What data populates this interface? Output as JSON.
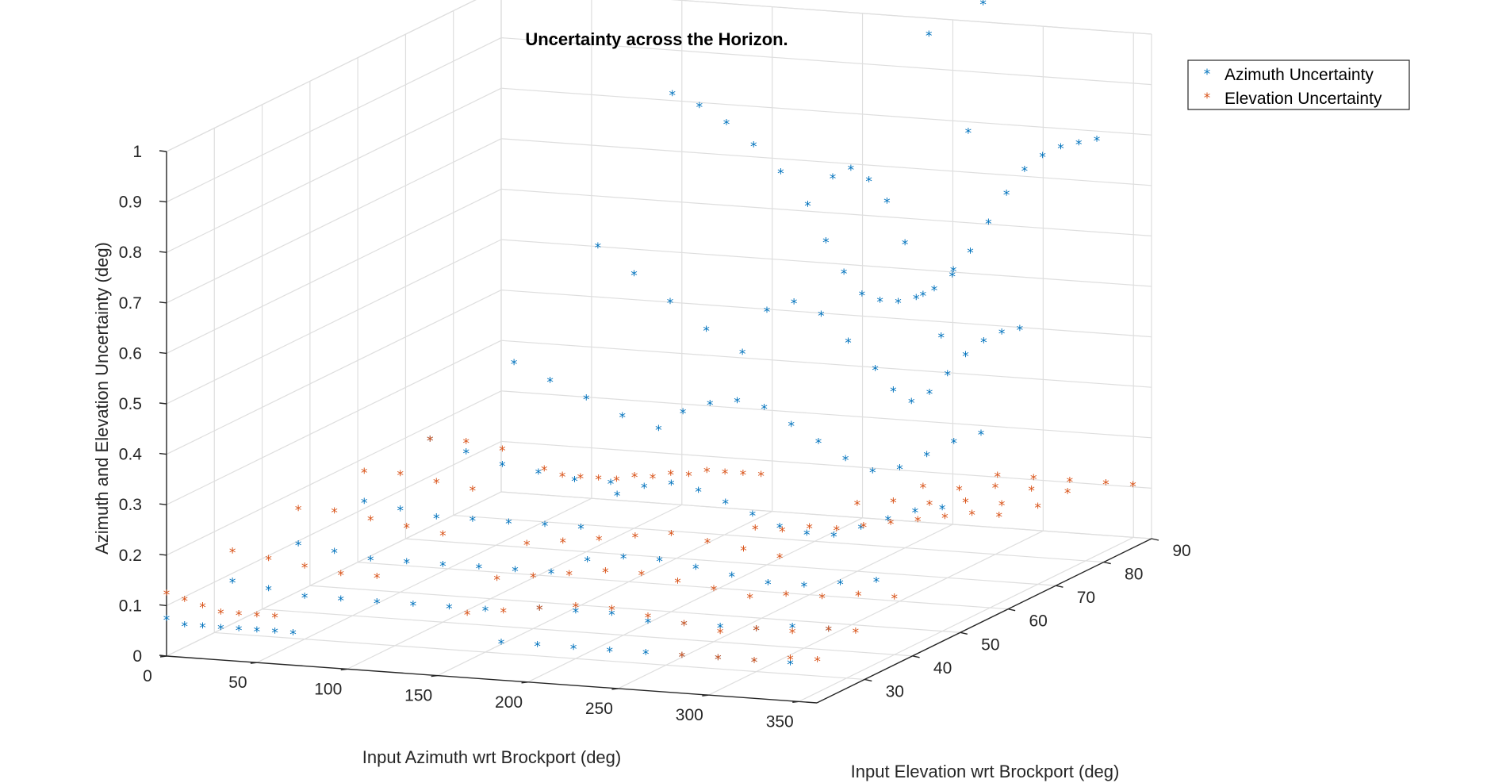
{
  "chart_data": {
    "type": "scatter3d",
    "title": "Uncertainty across the Horizon.",
    "xlabel": "Input Azimuth wrt Brockport (deg)",
    "ylabel": "Input Elevation wrt Brockport (deg)",
    "zlabel": "Azimuth and Elevation Uncertainty (deg)",
    "xlim": [
      0,
      360
    ],
    "ylim": [
      20,
      90
    ],
    "zlim": [
      0,
      1
    ],
    "xticks": [
      "0",
      "50",
      "100",
      "150",
      "200",
      "250",
      "300",
      "350"
    ],
    "yticks": [
      "30",
      "40",
      "50",
      "60",
      "70",
      "80",
      "90"
    ],
    "zticks": [
      "0",
      "0.1",
      "0.2",
      "0.3",
      "0.4",
      "0.5",
      "0.6",
      "0.7",
      "0.8",
      "0.9",
      "1"
    ],
    "grid": true,
    "legend_position": "top-right",
    "marker": "*",
    "series": [
      {
        "name": "Azimuth Uncertainty",
        "color": "#0072BD",
        "points": [
          [
            0,
            20,
            0.07
          ],
          [
            10,
            20,
            0.06
          ],
          [
            20,
            20,
            0.06
          ],
          [
            30,
            20,
            0.06
          ],
          [
            40,
            20,
            0.06
          ],
          [
            50,
            20,
            0.06
          ],
          [
            60,
            20,
            0.06
          ],
          [
            70,
            20,
            0.06
          ],
          [
            10,
            30,
            0.1
          ],
          [
            30,
            30,
            0.09
          ],
          [
            50,
            30,
            0.08
          ],
          [
            70,
            30,
            0.08
          ],
          [
            90,
            30,
            0.08
          ],
          [
            110,
            30,
            0.08
          ],
          [
            130,
            30,
            0.08
          ],
          [
            150,
            30,
            0.08
          ],
          [
            20,
            40,
            0.13
          ],
          [
            40,
            40,
            0.12
          ],
          [
            60,
            40,
            0.11
          ],
          [
            80,
            40,
            0.11
          ],
          [
            100,
            40,
            0.11
          ],
          [
            120,
            40,
            0.11
          ],
          [
            140,
            40,
            0.11
          ],
          [
            160,
            40,
            0.11
          ],
          [
            30,
            50,
            0.17
          ],
          [
            50,
            50,
            0.16
          ],
          [
            70,
            50,
            0.15
          ],
          [
            90,
            50,
            0.15
          ],
          [
            110,
            50,
            0.15
          ],
          [
            130,
            50,
            0.15
          ],
          [
            150,
            50,
            0.15
          ],
          [
            40,
            60,
            0.25
          ],
          [
            60,
            60,
            0.23
          ],
          [
            80,
            60,
            0.21
          ],
          [
            100,
            60,
            0.2
          ],
          [
            120,
            60,
            0.19
          ],
          [
            140,
            60,
            0.19
          ],
          [
            60,
            70,
            0.36
          ],
          [
            80,
            70,
            0.33
          ],
          [
            100,
            70,
            0.3
          ],
          [
            120,
            70,
            0.27
          ],
          [
            140,
            70,
            0.25
          ],
          [
            80,
            80,
            0.55
          ],
          [
            100,
            80,
            0.5
          ],
          [
            120,
            80,
            0.45
          ],
          [
            140,
            80,
            0.4
          ],
          [
            160,
            80,
            0.36
          ],
          [
            100,
            88,
            0.82
          ],
          [
            115,
            88,
            0.8
          ],
          [
            130,
            88,
            0.77
          ],
          [
            145,
            88,
            0.73
          ],
          [
            160,
            88,
            0.68
          ],
          [
            175,
            88,
            0.62
          ],
          [
            185,
            88,
            0.55
          ],
          [
            195,
            88,
            0.49
          ],
          [
            205,
            88,
            0.45
          ],
          [
            215,
            88,
            0.44
          ],
          [
            225,
            88,
            0.44
          ],
          [
            235,
            88,
            0.45
          ],
          [
            245,
            88,
            0.47
          ],
          [
            255,
            88,
            0.5
          ],
          [
            265,
            88,
            0.55
          ],
          [
            275,
            88,
            0.61
          ],
          [
            285,
            88,
            0.67
          ],
          [
            295,
            88,
            0.72
          ],
          [
            305,
            88,
            0.75
          ],
          [
            315,
            88,
            0.77
          ],
          [
            325,
            88,
            0.78
          ],
          [
            335,
            88,
            0.79
          ],
          [
            210,
            80,
            0.72
          ],
          [
            220,
            80,
            0.74
          ],
          [
            230,
            80,
            0.72
          ],
          [
            240,
            80,
            0.68
          ],
          [
            250,
            80,
            0.6
          ],
          [
            260,
            80,
            0.5
          ],
          [
            270,
            80,
            0.42
          ],
          [
            250,
            85,
            0.99
          ],
          [
            280,
            85,
            1.06
          ],
          [
            285,
            80,
            0.83
          ],
          [
            290,
            75,
            0.58
          ],
          [
            200,
            70,
            0.5
          ],
          [
            215,
            70,
            0.52
          ],
          [
            230,
            70,
            0.5
          ],
          [
            245,
            70,
            0.45
          ],
          [
            260,
            70,
            0.4
          ],
          [
            270,
            70,
            0.36
          ],
          [
            280,
            70,
            0.34
          ],
          [
            290,
            70,
            0.36
          ],
          [
            300,
            70,
            0.4
          ],
          [
            310,
            70,
            0.44
          ],
          [
            320,
            70,
            0.47
          ],
          [
            330,
            70,
            0.49
          ],
          [
            340,
            70,
            0.5
          ],
          [
            180,
            60,
            0.34
          ],
          [
            195,
            60,
            0.36
          ],
          [
            210,
            60,
            0.37
          ],
          [
            225,
            60,
            0.36
          ],
          [
            240,
            60,
            0.33
          ],
          [
            255,
            60,
            0.3
          ],
          [
            270,
            60,
            0.27
          ],
          [
            285,
            60,
            0.25
          ],
          [
            300,
            60,
            0.26
          ],
          [
            315,
            60,
            0.29
          ],
          [
            330,
            60,
            0.32
          ],
          [
            345,
            60,
            0.34
          ],
          [
            170,
            50,
            0.22
          ],
          [
            185,
            50,
            0.24
          ],
          [
            200,
            50,
            0.25
          ],
          [
            215,
            50,
            0.24
          ],
          [
            230,
            50,
            0.22
          ],
          [
            245,
            50,
            0.2
          ],
          [
            260,
            50,
            0.18
          ],
          [
            275,
            50,
            0.17
          ],
          [
            290,
            50,
            0.17
          ],
          [
            305,
            50,
            0.19
          ],
          [
            320,
            50,
            0.21
          ],
          [
            335,
            50,
            0.23
          ],
          [
            350,
            50,
            0.24
          ],
          [
            180,
            40,
            0.14
          ],
          [
            200,
            40,
            0.15
          ],
          [
            220,
            40,
            0.15
          ],
          [
            240,
            40,
            0.14
          ],
          [
            260,
            40,
            0.13
          ],
          [
            280,
            40,
            0.12
          ],
          [
            300,
            40,
            0.12
          ],
          [
            320,
            40,
            0.13
          ],
          [
            340,
            40,
            0.14
          ],
          [
            180,
            30,
            0.09
          ],
          [
            200,
            30,
            0.09
          ],
          [
            220,
            30,
            0.09
          ],
          [
            240,
            30,
            0.08
          ],
          [
            260,
            30,
            0.08
          ],
          [
            280,
            30,
            0.08
          ],
          [
            300,
            30,
            0.08
          ],
          [
            320,
            30,
            0.09
          ],
          [
            340,
            30,
            0.09
          ],
          [
            180,
            22,
            0.06
          ],
          [
            200,
            22,
            0.06
          ],
          [
            220,
            22,
            0.06
          ],
          [
            240,
            22,
            0.06
          ],
          [
            260,
            22,
            0.06
          ],
          [
            280,
            22,
            0.06
          ],
          [
            300,
            22,
            0.06
          ],
          [
            320,
            22,
            0.06
          ],
          [
            340,
            22,
            0.06
          ]
        ]
      },
      {
        "name": "Elevation Uncertainty",
        "color": "#D95319",
        "points": [
          [
            0,
            20,
            0.12
          ],
          [
            10,
            20,
            0.11
          ],
          [
            20,
            20,
            0.1
          ],
          [
            30,
            20,
            0.09
          ],
          [
            40,
            20,
            0.09
          ],
          [
            50,
            20,
            0.09
          ],
          [
            60,
            20,
            0.09
          ],
          [
            10,
            30,
            0.16
          ],
          [
            30,
            30,
            0.15
          ],
          [
            50,
            30,
            0.14
          ],
          [
            70,
            30,
            0.13
          ],
          [
            90,
            30,
            0.13
          ],
          [
            20,
            40,
            0.2
          ],
          [
            40,
            40,
            0.2
          ],
          [
            60,
            40,
            0.19
          ],
          [
            80,
            40,
            0.18
          ],
          [
            100,
            40,
            0.17
          ],
          [
            30,
            50,
            0.23
          ],
          [
            50,
            50,
            0.23
          ],
          [
            70,
            50,
            0.22
          ],
          [
            90,
            50,
            0.21
          ],
          [
            40,
            60,
            0.25
          ],
          [
            60,
            60,
            0.25
          ],
          [
            80,
            60,
            0.24
          ],
          [
            90,
            65,
            0.18
          ],
          [
            100,
            65,
            0.17
          ],
          [
            110,
            65,
            0.17
          ],
          [
            120,
            65,
            0.17
          ],
          [
            130,
            65,
            0.17
          ],
          [
            140,
            65,
            0.18
          ],
          [
            150,
            65,
            0.18
          ],
          [
            160,
            65,
            0.19
          ],
          [
            170,
            65,
            0.19
          ],
          [
            180,
            65,
            0.2
          ],
          [
            190,
            65,
            0.2
          ],
          [
            200,
            65,
            0.2
          ],
          [
            210,
            65,
            0.2
          ],
          [
            120,
            50,
            0.11
          ],
          [
            140,
            50,
            0.12
          ],
          [
            160,
            50,
            0.13
          ],
          [
            180,
            50,
            0.14
          ],
          [
            200,
            50,
            0.15
          ],
          [
            220,
            50,
            0.14
          ],
          [
            240,
            50,
            0.13
          ],
          [
            260,
            50,
            0.12
          ],
          [
            130,
            40,
            0.09
          ],
          [
            150,
            40,
            0.1
          ],
          [
            170,
            40,
            0.11
          ],
          [
            190,
            40,
            0.12
          ],
          [
            210,
            40,
            0.12
          ],
          [
            230,
            40,
            0.11
          ],
          [
            250,
            40,
            0.1
          ],
          [
            140,
            30,
            0.07
          ],
          [
            160,
            30,
            0.08
          ],
          [
            180,
            30,
            0.09
          ],
          [
            200,
            30,
            0.1
          ],
          [
            220,
            30,
            0.1
          ],
          [
            240,
            30,
            0.09
          ],
          [
            260,
            30,
            0.08
          ],
          [
            220,
            60,
            0.12
          ],
          [
            235,
            60,
            0.12
          ],
          [
            250,
            60,
            0.13
          ],
          [
            265,
            60,
            0.13
          ],
          [
            280,
            60,
            0.14
          ],
          [
            295,
            60,
            0.15
          ],
          [
            310,
            60,
            0.16
          ],
          [
            325,
            60,
            0.17
          ],
          [
            340,
            60,
            0.18
          ],
          [
            355,
            60,
            0.18
          ],
          [
            250,
            70,
            0.13
          ],
          [
            270,
            70,
            0.14
          ],
          [
            290,
            70,
            0.14
          ],
          [
            310,
            70,
            0.15
          ],
          [
            330,
            70,
            0.15
          ],
          [
            350,
            70,
            0.15
          ],
          [
            260,
            80,
            0.12
          ],
          [
            280,
            80,
            0.12
          ],
          [
            300,
            80,
            0.13
          ],
          [
            320,
            80,
            0.13
          ],
          [
            340,
            80,
            0.13
          ],
          [
            280,
            88,
            0.11
          ],
          [
            300,
            88,
            0.11
          ],
          [
            320,
            88,
            0.11
          ],
          [
            340,
            88,
            0.11
          ],
          [
            355,
            88,
            0.11
          ],
          [
            270,
            40,
            0.09
          ],
          [
            290,
            40,
            0.1
          ],
          [
            310,
            40,
            0.1
          ],
          [
            330,
            40,
            0.11
          ],
          [
            350,
            40,
            0.11
          ],
          [
            280,
            30,
            0.07
          ],
          [
            300,
            30,
            0.08
          ],
          [
            320,
            30,
            0.08
          ],
          [
            340,
            30,
            0.09
          ],
          [
            355,
            30,
            0.09
          ],
          [
            280,
            22,
            0.06
          ],
          [
            300,
            22,
            0.06
          ],
          [
            320,
            22,
            0.06
          ],
          [
            340,
            22,
            0.07
          ],
          [
            355,
            22,
            0.07
          ]
        ]
      }
    ]
  }
}
